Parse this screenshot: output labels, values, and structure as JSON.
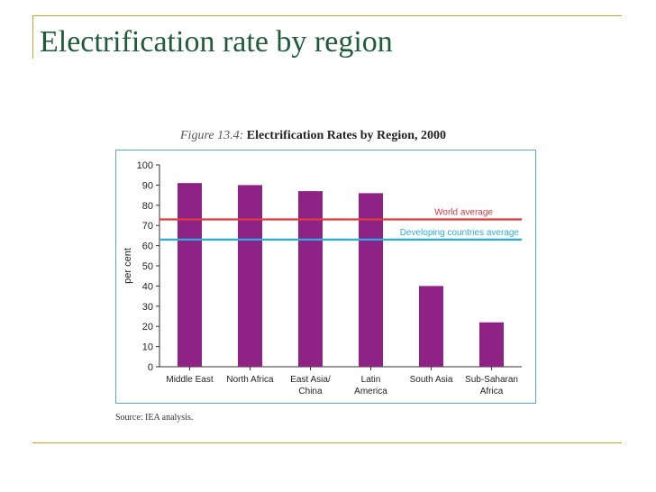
{
  "slide": {
    "title": "Electrification rate by region",
    "figure_number": "Figure 13.4:",
    "figure_title": "Electrification Rates by Region, 2000",
    "source": "Source: IEA analysis."
  },
  "colors": {
    "bar": "#8e2385",
    "world_line": "#e0393e",
    "developing_line": "#29aee3",
    "frame": "#55a8cf",
    "title": "#1f5c3a",
    "rule": "#c9a227"
  },
  "chart_data": {
    "type": "bar",
    "categories": [
      [
        "Middle East"
      ],
      [
        "North Africa"
      ],
      [
        "East Asia/",
        "China"
      ],
      [
        "Latin",
        "America"
      ],
      [
        "South Asia"
      ],
      [
        "Sub-Saharan",
        "Africa"
      ]
    ],
    "values": [
      91,
      90,
      87,
      86,
      40,
      22
    ],
    "ylabel": "per cent",
    "ylim": [
      0,
      100
    ],
    "yticks": [
      0,
      10,
      20,
      30,
      40,
      50,
      60,
      70,
      80,
      90,
      100
    ],
    "reference_lines": [
      {
        "name": "World  average",
        "value": 73,
        "color": "#e0393e"
      },
      {
        "name": "Developing countries average",
        "value": 63,
        "color": "#29aee3"
      }
    ],
    "grid": false
  }
}
